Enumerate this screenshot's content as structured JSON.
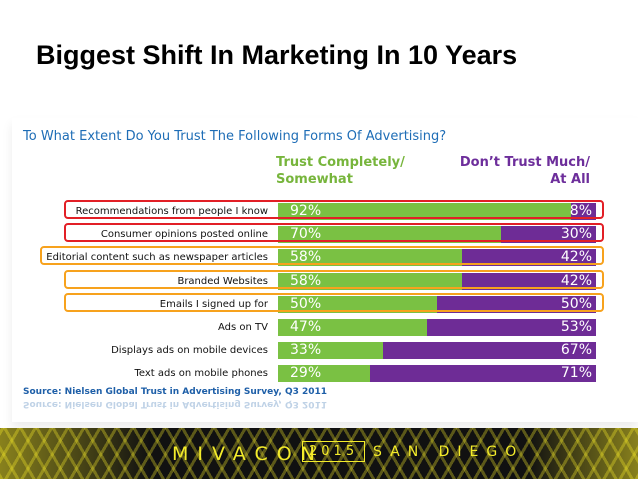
{
  "slide": {
    "title": "Biggest Shift In Marketing In 10 Years"
  },
  "chart_data": {
    "type": "bar",
    "title": "To What Extent Do You Trust The Following Forms Of Advertising?",
    "stacked": true,
    "series_headers": {
      "trust": "Trust Completely/ Somewhat",
      "distrust": "Don’t Trust Much/ At All"
    },
    "categories": [
      "Recommendations from people I know",
      "Consumer opinions posted online",
      "Editorial content such as newspaper articles",
      "Branded Websites",
      "Emails I signed up for",
      "Ads on TV",
      "Displays ads on mobile devices",
      "Text ads on mobile phones"
    ],
    "series": [
      {
        "name": "Trust Completely/ Somewhat",
        "color": "#7ac143",
        "values": [
          92,
          70,
          58,
          58,
          50,
          47,
          33,
          29
        ]
      },
      {
        "name": "Don’t Trust Much/ At All",
        "color": "#6e2c96",
        "values": [
          8,
          30,
          42,
          42,
          50,
          53,
          67,
          71
        ]
      }
    ],
    "value_suffix": "%",
    "highlights": [
      "red",
      "red",
      "orange",
      "orange",
      "orange",
      "none",
      "none",
      "none"
    ],
    "source": "Source: Nielsen Global Trust in Advertising Survey, Q3 2011"
  },
  "footer": {
    "brand": "MIVACON",
    "year": "2015",
    "city": "SAN DIEGO"
  }
}
